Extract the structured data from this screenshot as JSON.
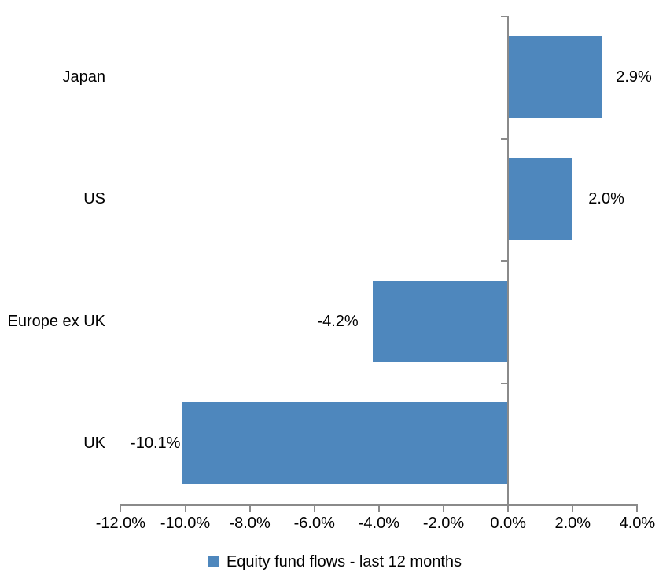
{
  "chart_data": {
    "type": "bar",
    "orientation": "horizontal",
    "title": "",
    "xlabel": "",
    "ylabel": "",
    "categories": [
      "Japan",
      "US",
      "Europe ex UK",
      "UK"
    ],
    "values": [
      2.9,
      2.0,
      -4.2,
      -10.1
    ],
    "value_labels": [
      "2.9%",
      "2.0%",
      "-4.2%",
      "-10.1%"
    ],
    "x_ticks": [
      -12,
      -10,
      -8,
      -6,
      -4,
      -2,
      0,
      2,
      4
    ],
    "x_tick_labels": [
      "-12.0%",
      "-10.0%",
      "-8.0%",
      "-6.0%",
      "-4.0%",
      "-2.0%",
      "0.0%",
      "2.0%",
      "4.0%"
    ],
    "xlim": [
      -12,
      4
    ],
    "grid": false,
    "legend": [
      "Equity fund flows - last 12 months"
    ],
    "legend_position": "bottom",
    "bar_color": "#4e87bd",
    "axis_color": "#8a8a8a",
    "text_color": "#000000"
  }
}
